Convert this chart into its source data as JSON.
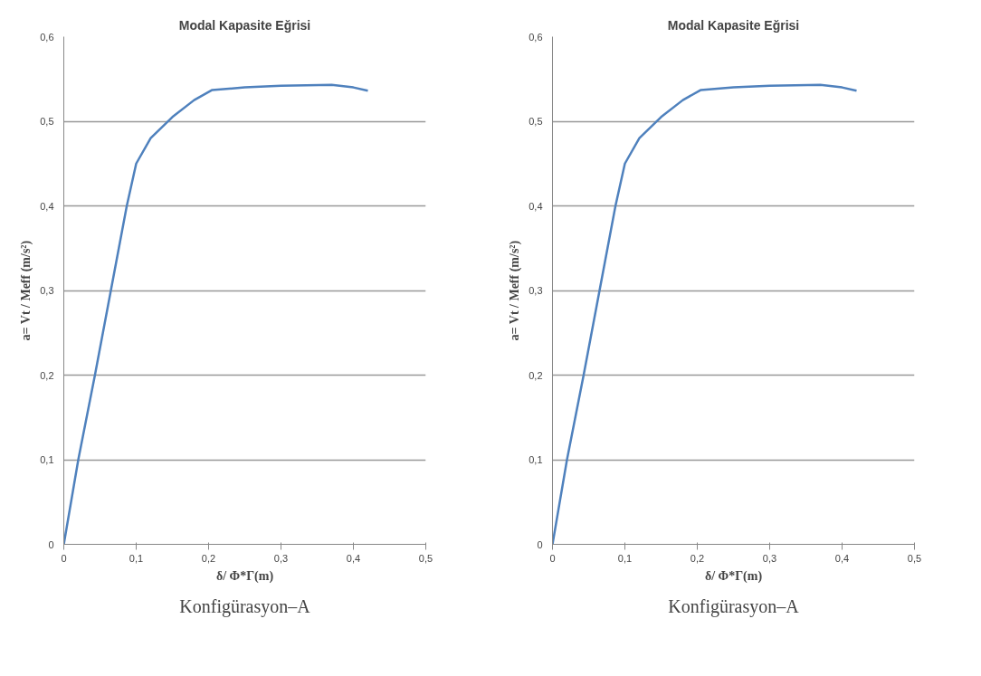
{
  "chart_data": [
    {
      "type": "line",
      "title": "Modal Kapasite Eğrisi",
      "xlabel": "δ/ Φ*Γ(m)",
      "ylabel": "a= Vt / Meff (m/s²)",
      "annotations": [
        "Konfigürasyon–A"
      ],
      "x": [
        0,
        0.02,
        0.043,
        0.065,
        0.087,
        0.1,
        0.12,
        0.15,
        0.18,
        0.205,
        0.25,
        0.3,
        0.37,
        0.4,
        0.42
      ],
      "series": [
        {
          "color": "#4f81bd",
          "values": [
            0,
            0.1,
            0.2,
            0.3,
            0.4,
            0.45,
            0.48,
            0.505,
            0.525,
            0.537,
            0.54,
            0.542,
            0.543,
            0.54,
            0.536
          ]
        }
      ],
      "xlim": [
        0,
        0.5
      ],
      "ylim": [
        0,
        0.6
      ],
      "xticks": [
        0,
        {
          "value": 0.1,
          "label": "0,1"
        },
        {
          "value": 0.2,
          "label": "0,2"
        },
        {
          "value": 0.3,
          "label": "0,3"
        },
        {
          "value": 0.4,
          "label": "0,4"
        },
        {
          "value": 0.5,
          "label": "0,5"
        }
      ],
      "yticks": [
        0,
        {
          "value": 0.1,
          "label": "0,1"
        },
        {
          "value": 0.2,
          "label": "0,2"
        },
        {
          "value": 0.3,
          "label": "0,3"
        },
        {
          "value": 0.4,
          "label": "0,4"
        },
        {
          "value": 0.5,
          "label": "0,5"
        },
        {
          "value": 0.6,
          "label": "0,6"
        }
      ],
      "grid": "y"
    },
    {
      "type": "line",
      "title": "Modal Kapasite Eğrisi",
      "xlabel": "δ/ Φ*Γ(m)",
      "ylabel": "a= Vt / Meff (m/s²)",
      "annotations": [
        "Konfigürasyon–A"
      ],
      "x": [
        0,
        0.02,
        0.043,
        0.065,
        0.087,
        0.1,
        0.12,
        0.15,
        0.18,
        0.205,
        0.25,
        0.3,
        0.37,
        0.4,
        0.42
      ],
      "series": [
        {
          "color": "#4f81bd",
          "values": [
            0,
            0.1,
            0.2,
            0.3,
            0.4,
            0.45,
            0.48,
            0.505,
            0.525,
            0.537,
            0.54,
            0.542,
            0.543,
            0.54,
            0.536
          ]
        }
      ],
      "xlim": [
        0,
        0.5
      ],
      "ylim": [
        0,
        0.6
      ],
      "xticks": [
        0,
        {
          "value": 0.1,
          "label": "0,1"
        },
        {
          "value": 0.2,
          "label": "0,2"
        },
        {
          "value": 0.3,
          "label": "0,3"
        },
        {
          "value": 0.4,
          "label": "0,4"
        },
        {
          "value": 0.5,
          "label": "0,5"
        }
      ],
      "yticks": [
        0,
        {
          "value": 0.1,
          "label": "0,1"
        },
        {
          "value": 0.2,
          "label": "0,2"
        },
        {
          "value": 0.3,
          "label": "0,3"
        },
        {
          "value": 0.4,
          "label": "0,4"
        },
        {
          "value": 0.5,
          "label": "0,5"
        },
        {
          "value": 0.6,
          "label": "0,6"
        }
      ],
      "grid": "y"
    }
  ]
}
